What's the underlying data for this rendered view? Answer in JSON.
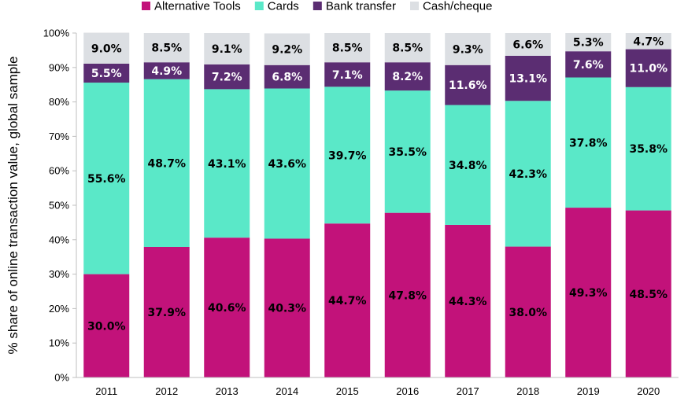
{
  "chart_data": {
    "type": "bar",
    "stacked": true,
    "title": "",
    "xlabel": "",
    "ylabel": "% share of online transaction value, global sample",
    "ylim": [
      0,
      100
    ],
    "y_ticks": [
      "0%",
      "10%",
      "20%",
      "30%",
      "40%",
      "50%",
      "60%",
      "70%",
      "80%",
      "90%",
      "100%"
    ],
    "categories": [
      "2011",
      "2012",
      "2013",
      "2014",
      "2015",
      "2016",
      "2017",
      "2018",
      "2019",
      "2020"
    ],
    "legend_position": "top",
    "series": [
      {
        "name": "Alternative Tools",
        "color": "#c2127a",
        "label_color": "#000000",
        "values": [
          30.0,
          37.9,
          40.6,
          40.3,
          44.7,
          47.8,
          44.3,
          38.0,
          49.3,
          48.5
        ],
        "labels": [
          "30.0%",
          "37.9%",
          "40.6%",
          "40.3%",
          "44.7%",
          "47.8%",
          "44.3%",
          "38.0%",
          "49.3%",
          "48.5%"
        ]
      },
      {
        "name": "Cards",
        "color": "#5ae8c8",
        "label_color": "#000000",
        "values": [
          55.6,
          48.7,
          43.1,
          43.6,
          39.7,
          35.5,
          34.8,
          42.3,
          37.8,
          35.8
        ],
        "labels": [
          "55.6%",
          "48.7%",
          "43.1%",
          "43.6%",
          "39.7%",
          "35.5%",
          "34.8%",
          "42.3%",
          "37.8%",
          "35.8%"
        ]
      },
      {
        "name": "Bank transfer",
        "color": "#5b2d72",
        "label_color": "#ffffff",
        "values": [
          5.5,
          4.9,
          7.2,
          6.8,
          7.1,
          8.2,
          11.6,
          13.1,
          7.6,
          11.0
        ],
        "labels": [
          "5.5%",
          "4.9%",
          "7.2%",
          "6.8%",
          "7.1%",
          "8.2%",
          "11.6%",
          "13.1%",
          "7.6%",
          "11.0%"
        ]
      },
      {
        "name": "Cash/cheque",
        "color": "#dcdfe3",
        "label_color": "#000000",
        "values": [
          9.0,
          8.5,
          9.1,
          9.2,
          8.5,
          8.5,
          9.3,
          6.6,
          5.3,
          4.7
        ],
        "labels": [
          "9.0%",
          "8.5%",
          "9.1%",
          "9.2%",
          "8.5%",
          "8.5%",
          "9.3%",
          "6.6%",
          "5.3%",
          "4.7%"
        ]
      }
    ]
  }
}
